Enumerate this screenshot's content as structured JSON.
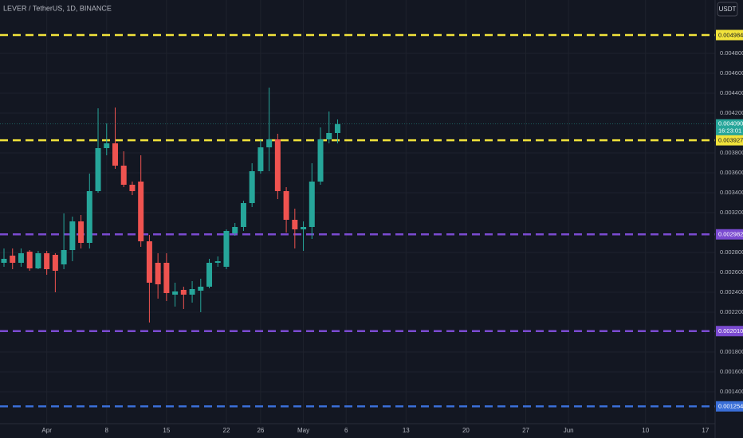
{
  "chart_data": {
    "type": "candlestick",
    "title": "LEVER / TetherUS, 1D, BINANCE",
    "currency_button": "USDT",
    "up_color": "#26a69a",
    "down_color": "#ef5350",
    "grid": true,
    "categories": [
      null,
      null,
      null,
      null,
      null,
      "Apr",
      null,
      null,
      null,
      null,
      null,
      null,
      "8",
      null,
      null,
      null,
      null,
      null,
      null,
      "15",
      null,
      null,
      null,
      null,
      null,
      null,
      "22",
      null,
      null,
      null,
      "26",
      null,
      null,
      null,
      null,
      "May",
      null,
      null,
      null,
      null,
      "6",
      null,
      null,
      null,
      null,
      null,
      null,
      "13",
      null,
      null,
      null,
      null,
      null,
      null,
      "20",
      null,
      null,
      null,
      null,
      null,
      null,
      "27",
      null,
      null,
      null,
      null,
      "Jun",
      null,
      null,
      null,
      null,
      null,
      null,
      null,
      null,
      "10",
      null,
      null,
      null,
      null,
      null,
      null,
      "17",
      null
    ],
    "open": [
      0.002696,
      0.002768,
      0.002696,
      0.002808,
      0.00264,
      0.002792,
      0.002776,
      0.00268,
      0.002824,
      0.003112,
      0.002896,
      0.003416,
      0.003848,
      0.003896,
      0.003672,
      0.00348,
      0.003512,
      0.002912,
      0.002696,
      0.002696,
      0.002376,
      0.002424,
      0.002376,
      0.002416,
      0.002456,
      0.002696,
      0.002656,
      0.002992,
      0.003056,
      0.003296,
      0.003616,
      0.003856,
      0.003936,
      0.003416,
      0.003128,
      0.003032,
      0.003056,
      0.003512,
      0.003936,
      0.004,
      null,
      null,
      null,
      null,
      null,
      null,
      null,
      null,
      null,
      null,
      null,
      null,
      null,
      null,
      null,
      null,
      null,
      null,
      null,
      null,
      null,
      null,
      null,
      null,
      null,
      null,
      null,
      null,
      null,
      null,
      null,
      null,
      null,
      null,
      null,
      null,
      null,
      null,
      null,
      null,
      null,
      null,
      null,
      null
    ],
    "high": [
      0.00284,
      0.00284,
      0.00284,
      0.002824,
      0.002816,
      0.002816,
      0.002792,
      0.003192,
      0.00316,
      0.003176,
      0.003592,
      0.004248,
      0.004096,
      0.004256,
      0.003816,
      0.003512,
      0.003776,
      0.002976,
      0.002792,
      0.002792,
      0.002496,
      0.002456,
      0.002512,
      0.002536,
      0.002736,
      0.00276,
      0.003032,
      0.003096,
      0.00332,
      0.003696,
      0.003928,
      0.004456,
      0.003992,
      0.003456,
      0.00324,
      0.003112,
      0.003696,
      0.004056,
      0.004216,
      0.004136,
      null,
      null,
      null,
      null,
      null,
      null,
      null,
      null,
      null,
      null,
      null,
      null,
      null,
      null,
      null,
      null,
      null,
      null,
      null,
      null,
      null,
      null,
      null,
      null,
      null,
      null,
      null,
      null,
      null,
      null,
      null,
      null,
      null,
      null,
      null,
      null,
      null,
      null,
      null,
      null,
      null,
      null,
      null,
      null
    ],
    "low": [
      0.002656,
      0.002632,
      0.002656,
      0.002616,
      0.002632,
      0.002576,
      0.0024,
      0.002632,
      0.002712,
      0.00284,
      0.00284,
      0.0034,
      0.003776,
      0.00364,
      0.003456,
      0.003376,
      0.002856,
      0.002096,
      0.002336,
      0.002312,
      0.002256,
      0.002232,
      0.002296,
      0.0022,
      0.00244,
      0.002656,
      0.002632,
      0.002968,
      0.003016,
      0.003256,
      0.003592,
      0.003616,
      0.003336,
      0.003,
      0.00284,
      0.002816,
      0.002936,
      0.00348,
      0.003896,
      0.003896,
      null,
      null,
      null,
      null,
      null,
      null,
      null,
      null,
      null,
      null,
      null,
      null,
      null,
      null,
      null,
      null,
      null,
      null,
      null,
      null,
      null,
      null,
      null,
      null,
      null,
      null,
      null,
      null,
      null,
      null,
      null,
      null,
      null,
      null,
      null,
      null,
      null,
      null,
      null,
      null,
      null,
      null,
      null,
      null
    ],
    "close": [
      0.002736,
      0.002696,
      0.002792,
      0.00264,
      0.002792,
      0.002632,
      0.002616,
      0.002824,
      0.003112,
      0.002896,
      0.003416,
      0.003848,
      0.003896,
      0.003672,
      0.00348,
      0.003416,
      0.002912,
      0.002496,
      0.00248,
      0.002392,
      0.002408,
      0.002376,
      0.002432,
      0.002456,
      0.002696,
      0.002712,
      0.003016,
      0.003056,
      0.003296,
      0.003616,
      0.003856,
      0.003936,
      0.003416,
      0.003128,
      0.003032,
      0.003056,
      0.003512,
      0.003936,
      0.004,
      0.00409,
      null,
      null,
      null,
      null,
      null,
      null,
      null,
      null,
      null,
      null,
      null,
      null,
      null,
      null,
      null,
      null,
      null,
      null,
      null,
      null,
      null,
      null,
      null,
      null,
      null,
      null,
      null,
      null,
      null,
      null,
      null,
      null,
      null,
      null,
      null,
      null,
      null,
      null,
      null,
      null,
      null,
      null,
      null,
      null
    ],
    "ylim": [
      0.00108,
      0.005336
    ],
    "yticks": [
      {
        "value": 0.0048,
        "label": "0.004800"
      },
      {
        "value": 0.0046,
        "label": "0.004600"
      },
      {
        "value": 0.0044,
        "label": "0.004400"
      },
      {
        "value": 0.0042,
        "label": "0.004200"
      },
      {
        "value": 0.0038,
        "label": "0.003800"
      },
      {
        "value": 0.0036,
        "label": "0.003600"
      },
      {
        "value": 0.0034,
        "label": "0.003400"
      },
      {
        "value": 0.0032,
        "label": "0.003200"
      },
      {
        "value": 0.0028,
        "label": "0.002800"
      },
      {
        "value": 0.0026,
        "label": "0.002600"
      },
      {
        "value": 0.0024,
        "label": "0.002400"
      },
      {
        "value": 0.0022,
        "label": "0.002200"
      },
      {
        "value": 0.0018,
        "label": "0.001800"
      },
      {
        "value": 0.0016,
        "label": "0.001600"
      },
      {
        "value": 0.0014,
        "label": "0.001400"
      }
    ],
    "levels": [
      {
        "value": 0.004984,
        "label": "0.004984",
        "color": "#f2e33b"
      },
      {
        "value": 0.003927,
        "label": "0.003927",
        "color": "#f2e33b"
      },
      {
        "value": 0.002982,
        "label": "0.002982",
        "color": "#7b4bd1"
      },
      {
        "value": 0.00201,
        "label": "0.002010",
        "color": "#7b4bd1"
      },
      {
        "value": 0.001254,
        "label": "0.001254",
        "color": "#3a6fd8"
      }
    ],
    "last_price": {
      "value": 0.00409,
      "label": "0.004090",
      "countdown": "16:23:01"
    }
  }
}
